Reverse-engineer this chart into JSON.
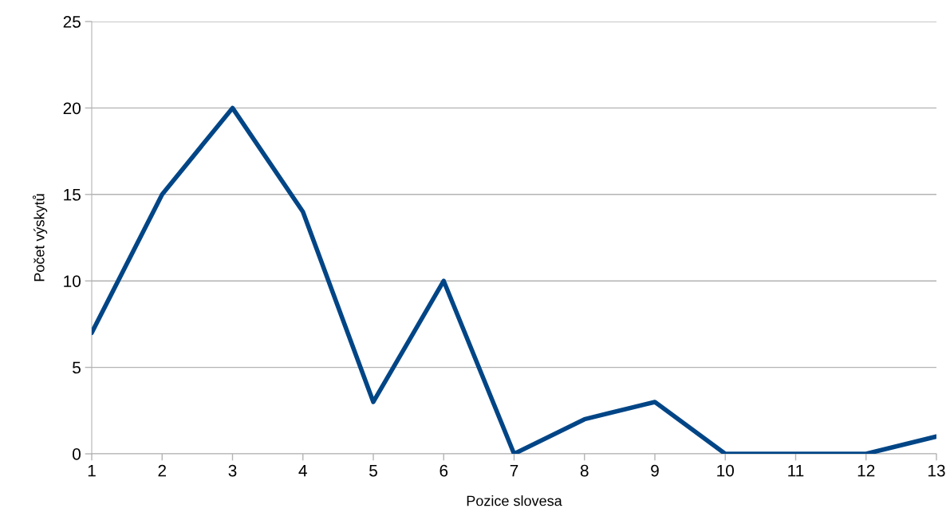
{
  "chart_data": {
    "type": "line",
    "xlabel": "Pozice slovesa",
    "ylabel": "Počet výskytů",
    "x": [
      1,
      2,
      3,
      4,
      5,
      6,
      7,
      8,
      9,
      10,
      11,
      12,
      13
    ],
    "series": [
      {
        "color": "#004586",
        "values": [
          7,
          15,
          20,
          14,
          3,
          10,
          0,
          2,
          3,
          0,
          0,
          0,
          1
        ]
      }
    ],
    "xlim": [
      1,
      13
    ],
    "xticks": [
      1,
      2,
      3,
      4,
      5,
      6,
      7,
      8,
      9,
      10,
      11,
      12,
      13
    ],
    "ylim": [
      0,
      25
    ],
    "yticks": [
      0,
      5,
      10,
      15,
      20,
      25
    ],
    "grid": "y",
    "marker": "none",
    "line_style": "solid",
    "legend": false
  }
}
